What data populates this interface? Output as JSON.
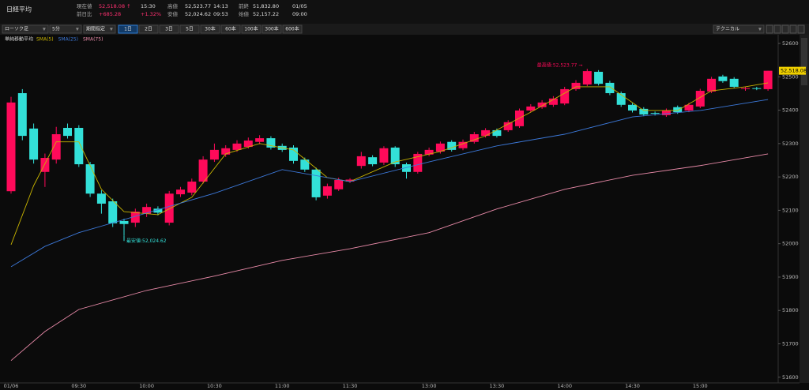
{
  "header": {
    "title": "日経平均",
    "fields": [
      {
        "label": "現在値",
        "value": "52,518.08 ↑",
        "time": "15:30"
      },
      {
        "label": "前日比",
        "value": "+685.28",
        "time": "+1.32%"
      },
      {
        "label": "高値",
        "value": "52,523.77",
        "time": "14:13"
      },
      {
        "label": "安値",
        "value": "52,024.62",
        "time": "09:53"
      },
      {
        "label": "前終",
        "value": "51,832.80",
        "time": "01/05"
      },
      {
        "label": "始値",
        "value": "52,157.22",
        "time": "09:00"
      }
    ]
  },
  "toolbar": {
    "chart_kind": "ローソク足",
    "interval": "5分",
    "period": "期間指定",
    "ranges": [
      "1日",
      "2日",
      "3日",
      "5日",
      "30本",
      "60本",
      "100本",
      "300本",
      "600本"
    ],
    "technical": "テクニカル"
  },
  "chart_data": {
    "type": "candlestick",
    "legend_title": "単純移動平均",
    "up_color": "#ff0a5a",
    "down_color": "#33e0d8",
    "categories": [
      "01/06",
      null,
      null,
      null,
      null,
      null,
      "09:30",
      null,
      null,
      null,
      null,
      null,
      "10:00",
      null,
      null,
      null,
      null,
      null,
      "10:30",
      null,
      null,
      null,
      null,
      null,
      "11:00",
      null,
      null,
      null,
      null,
      null,
      "11:30",
      null,
      null,
      null,
      null,
      null,
      null,
      "13:00",
      null,
      null,
      null,
      null,
      null,
      "13:30",
      null,
      null,
      null,
      null,
      null,
      "14:00",
      null,
      null,
      null,
      null,
      null,
      "14:30",
      null,
      null,
      null,
      null,
      null,
      "15:00",
      null,
      null,
      null,
      null,
      null,
      null
    ],
    "open": [
      52157.22,
      52451,
      52345,
      52215,
      52252,
      52347,
      52347,
      52238,
      52150,
      52127,
      52068,
      52063,
      52090,
      52105,
      52063,
      52148,
      52153,
      52186,
      52252,
      52267,
      52281,
      52290,
      52305,
      52316,
      52293,
      52288,
      52252,
      52222,
      52144,
      52163,
      52186,
      52233,
      52259,
      52243,
      52288,
      52238,
      52215,
      52267,
      52276,
      52305,
      52286,
      52305,
      52323,
      52340,
      52340,
      52352,
      52399,
      52409,
      52416,
      52420,
      52463,
      52477,
      52515,
      52482,
      52451,
      52416,
      52404,
      52392,
      52385,
      52409,
      52399,
      52411,
      52456,
      52501,
      52494,
      52465,
      52466,
      52463
    ],
    "high": [
      52440,
      52463,
      52360,
      52270,
      52350,
      52360,
      52355,
      52245,
      52160,
      52135,
      52075,
      52105,
      52120,
      52112,
      52158,
      52170,
      52195,
      52262,
      52300,
      52295,
      52310,
      52318,
      52325,
      52322,
      52300,
      52295,
      52258,
      52228,
      52180,
      52198,
      52196,
      52275,
      52265,
      52292,
      52292,
      52243,
      52275,
      52288,
      52306,
      52310,
      52312,
      52335,
      52346,
      52345,
      52370,
      52405,
      52418,
      52430,
      52442,
      52470,
      52490,
      52523.77,
      52520,
      52488,
      52456,
      52421,
      52409,
      52396,
      52405,
      52414,
      52422,
      52464,
      52500,
      52506,
      52499,
      52471,
      52470,
      52518.08
    ],
    "low": [
      52150,
      52310,
      52240,
      52170,
      52240,
      52315,
      52230,
      52140,
      52090,
      52050,
      52024.62,
      52050,
      52080,
      52085,
      52055,
      52140,
      52145,
      52180,
      52245,
      52260,
      52275,
      52285,
      52298,
      52282,
      52275,
      52240,
      52215,
      52130,
      52135,
      52158,
      52182,
      52225,
      52232,
      52236,
      52230,
      52195,
      52210,
      52262,
      52270,
      52276,
      52280,
      52300,
      52318,
      52318,
      52335,
      52347,
      52394,
      52404,
      52410,
      52415,
      52458,
      52472,
      52474,
      52445,
      52410,
      52393,
      52382,
      52384,
      52380,
      52389,
      52394,
      52406,
      52451,
      52482,
      52465,
      52458,
      52460,
      52458
    ],
    "close": [
      52423,
      52323,
      52252,
      52257,
      52328,
      52323,
      52238,
      52150,
      52120,
      52061,
      52059,
      52096,
      52110,
      52093,
      52150,
      52162,
      52186,
      52252,
      52281,
      52286,
      52300,
      52309,
      52316,
      52288,
      52281,
      52248,
      52222,
      52139,
      52172,
      52191,
      52192,
      52262,
      52238,
      52286,
      52238,
      52215,
      52269,
      52281,
      52300,
      52281,
      52305,
      52328,
      52340,
      52323,
      52364,
      52399,
      52411,
      52423,
      52435,
      52463,
      52482,
      52517,
      52479,
      52451,
      52416,
      52399,
      52387,
      52390,
      52399,
      52394,
      52416,
      52458,
      52494,
      52487,
      52470,
      52466,
      52465,
      52518.08
    ],
    "series": [
      {
        "name": "SMA(5)",
        "color": "#c8b400",
        "x": [
          0,
          2,
          4,
          6,
          8,
          10,
          13,
          16,
          19,
          22,
          25,
          28,
          30,
          34,
          38,
          42,
          46,
          50,
          53,
          56,
          59,
          62,
          65,
          67
        ],
        "values": [
          51997,
          52174,
          52305,
          52305,
          52163,
          52096,
          52087,
          52139,
          52269,
          52300,
          52281,
          52198,
          52186,
          52245,
          52276,
          52323,
          52394,
          52470,
          52470,
          52399,
          52399,
          52458,
          52470,
          52482
        ]
      },
      {
        "name": "SMA(25)",
        "color": "#3c78d8",
        "x": [
          0,
          3,
          6,
          12,
          18,
          24,
          30,
          37,
          43,
          49,
          55,
          61,
          67
        ],
        "values": [
          51931,
          51992,
          52033,
          52092,
          52151,
          52222,
          52186,
          52245,
          52293,
          52328,
          52380,
          52399,
          52432
        ]
      },
      {
        "name": "SMA(75)",
        "color": "#e88aa8",
        "x": [
          0,
          3,
          6,
          12,
          18,
          24,
          30,
          37,
          43,
          49,
          55,
          61,
          67
        ],
        "values": [
          51650,
          51737,
          51803,
          51860,
          51903,
          51950,
          51985,
          52033,
          52104,
          52163,
          52205,
          52234,
          52269
        ]
      }
    ],
    "ylim": [
      51583,
      52626
    ],
    "yticks": [
      51600,
      51700,
      51800,
      51900,
      52000,
      52100,
      52200,
      52300,
      52400,
      52500,
      52600
    ],
    "grid": false,
    "high_label": "最高値:52,523.77 →",
    "low_label": "最安値:52,024.62",
    "last_label": "52,518.08"
  }
}
